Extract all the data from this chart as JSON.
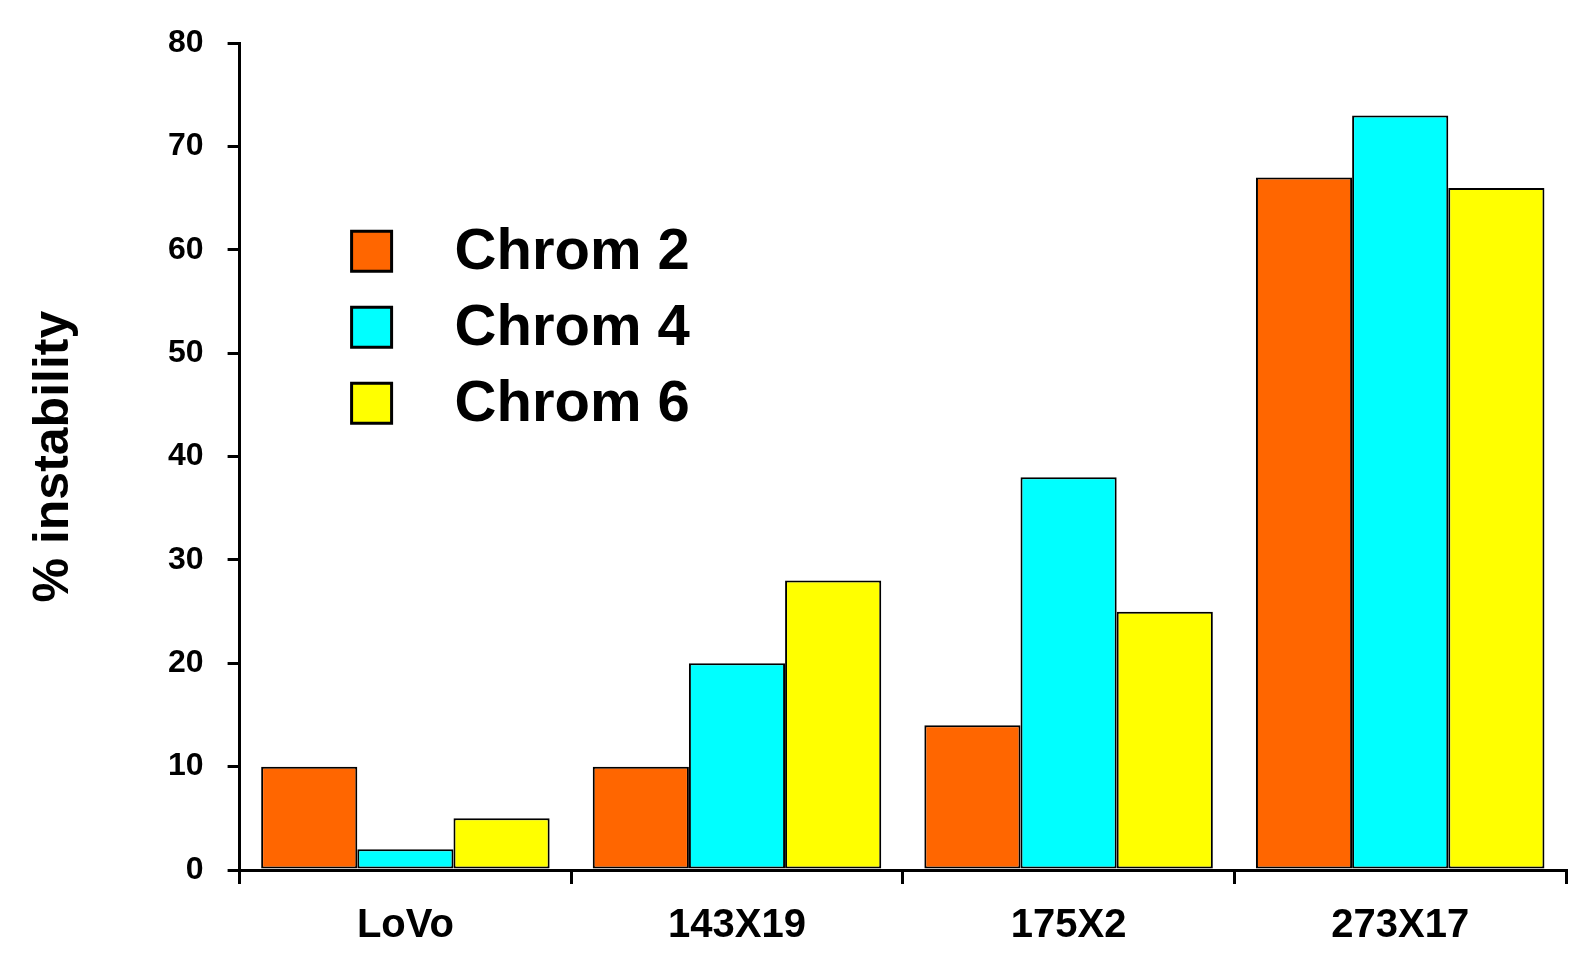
{
  "chart_data": {
    "type": "bar",
    "ylabel": "% instability",
    "categories": [
      "LoVo",
      "143X19",
      "175X2",
      "273X17"
    ],
    "series": [
      {
        "name": "Chrom 2",
        "color": "#ff6600",
        "values": [
          10,
          10,
          14,
          67
        ]
      },
      {
        "name": "Chrom 4",
        "color": "#00ffff",
        "values": [
          2,
          20,
          38,
          73
        ]
      },
      {
        "name": "Chrom 6",
        "color": "#ffff00",
        "values": [
          5,
          28,
          25,
          66
        ]
      }
    ],
    "ylim": [
      0,
      80
    ],
    "yticks": [
      0,
      10,
      20,
      30,
      40,
      50,
      60,
      70,
      80
    ],
    "grid": false,
    "legend": "top left"
  }
}
